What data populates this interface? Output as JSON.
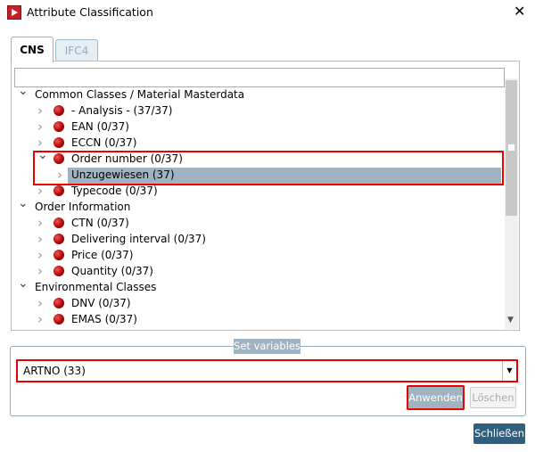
{
  "window": {
    "title": "Attribute Classification",
    "close_icon": "close-icon"
  },
  "tabs": [
    {
      "label": "CNS",
      "active": true
    },
    {
      "label": "IFC4",
      "active": false
    }
  ],
  "search": {
    "value": "",
    "placeholder": ""
  },
  "tree": [
    {
      "label": "Common Classes / Material Masterdata",
      "level": 0,
      "expanded": true
    },
    {
      "label": "- Analysis - (37/37)",
      "level": 1,
      "expanded": false
    },
    {
      "label": "EAN (0/37)",
      "level": 1,
      "expanded": false
    },
    {
      "label": "ECCN (0/37)",
      "level": 1,
      "expanded": false
    },
    {
      "label": "Order number (0/37)",
      "level": 1,
      "expanded": true
    },
    {
      "label": "Unzugewiesen (37)",
      "level": 2,
      "expanded": false,
      "selected": true
    },
    {
      "label": "Typecode (0/37)",
      "level": 1,
      "expanded": false
    },
    {
      "label": "Order Information",
      "level": 0,
      "expanded": true
    },
    {
      "label": "CTN (0/37)",
      "level": 1,
      "expanded": false
    },
    {
      "label": "Delivering interval (0/37)",
      "level": 1,
      "expanded": false
    },
    {
      "label": "Price (0/37)",
      "level": 1,
      "expanded": false
    },
    {
      "label": "Quantity (0/37)",
      "level": 1,
      "expanded": false
    },
    {
      "label": "Environmental Classes",
      "level": 0,
      "expanded": true
    },
    {
      "label": "DNV (0/37)",
      "level": 1,
      "expanded": false
    },
    {
      "label": "EMAS (0/37)",
      "level": 1,
      "expanded": false
    }
  ],
  "set_variables": {
    "legend": "Set variables",
    "combo_value": "ARTNO (33)",
    "apply_label": "Anwenden",
    "clear_label": "Löschen"
  },
  "close_label": "Schließen",
  "colors": {
    "accent": "#9fb3c0",
    "primary_button": "#2f5e7e",
    "highlight_border": "#ee0000"
  }
}
